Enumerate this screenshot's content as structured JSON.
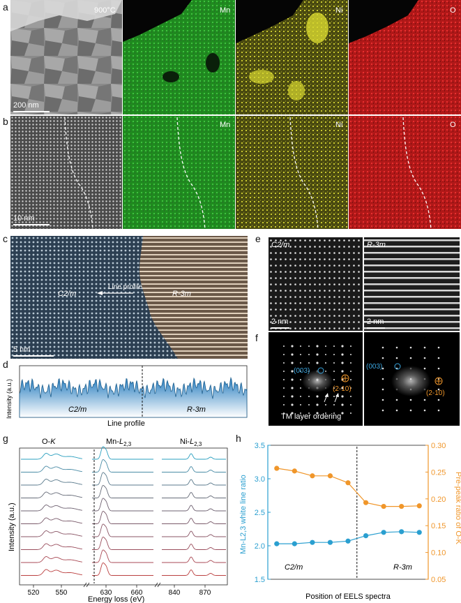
{
  "panel_labels": {
    "a": "a",
    "b": "b",
    "c": "c",
    "d": "d",
    "e": "e",
    "f": "f",
    "g": "g",
    "h": "h"
  },
  "panel_a": {
    "temperature": "900°C",
    "maps": [
      "Mn",
      "Ni",
      "O"
    ],
    "scalebar": "200 nm",
    "colors": {
      "Mn": "#33cc33",
      "Ni": "#e6e633",
      "O": "#e62a2a"
    }
  },
  "panel_b": {
    "maps": [
      "Mn",
      "Ni",
      "O"
    ],
    "scalebar": "10 nm"
  },
  "panel_c": {
    "left_phase": "C2/m",
    "right_phase": "R-3m",
    "arrow_label": "Line profile",
    "scalebar": "5 nm"
  },
  "panel_d": {
    "ylabel": "Intensity (a.u.)",
    "xlabel": "Line profile",
    "left_phase": "C2/m",
    "right_phase": "R-3m"
  },
  "panel_e": {
    "left_title": "C2/m",
    "right_title": "R-3m",
    "left_scalebar": "2 nm",
    "right_scalebar": "2 nm"
  },
  "panel_f": {
    "left_spot_blue": "(003)",
    "left_spot_orange": "(2-10)",
    "right_spot_blue": "(003)",
    "right_spot_orange": "(2-10)",
    "caption": "TM layer ordering"
  },
  "panel_g": {
    "ylabel": "Intensity (a.u.)",
    "xlabel": "Energy loss (eV)",
    "edges": [
      "O-K",
      "Mn-L2,3",
      "Ni-L2,3"
    ],
    "ticks": [
      {
        "label": "520",
        "v": 520
      },
      {
        "label": "550",
        "v": 550
      },
      {
        "label": "630",
        "v": 630
      },
      {
        "label": "660",
        "v": 660
      },
      {
        "label": "840",
        "v": 840
      },
      {
        "label": "870",
        "v": 870
      }
    ],
    "spectra_count": 10,
    "spectrum_colors": [
      "#2a9fbf",
      "#4a8ca6",
      "#5a7a8c",
      "#666b78",
      "#6e6070",
      "#7a5a6a",
      "#8a5565",
      "#9a4e5d",
      "#aa4a55",
      "#bb4040"
    ]
  },
  "chart_data": {
    "type": "line",
    "title": "",
    "xlabel": "Position of EELS spectra",
    "ylabel": "Mn-L2,3 white line ratio",
    "y2label": "Pre-peak ratio of O-K",
    "ylim": [
      1.5,
      3.5
    ],
    "y2lim": [
      0.05,
      0.3
    ],
    "yticks": [
      "1.5",
      "2.0",
      "2.5",
      "3.0",
      "3.5"
    ],
    "y2ticks": [
      "0.05",
      "0.10",
      "0.15",
      "0.20",
      "0.25",
      "0.30"
    ],
    "x": [
      1,
      2,
      3,
      4,
      5,
      6,
      7,
      8,
      9
    ],
    "series": [
      {
        "name": "Mn-L2,3 white line ratio",
        "axis": "left",
        "color": "#2a9fd0",
        "values": [
          2.03,
          2.03,
          2.05,
          2.05,
          2.07,
          2.15,
          2.2,
          2.21,
          2.2
        ]
      },
      {
        "name": "Pre-peak ratio of O-K",
        "axis": "right",
        "color": "#f0962a",
        "values": [
          0.257,
          0.252,
          0.243,
          0.243,
          0.23,
          0.193,
          0.186,
          0.186,
          0.187
        ]
      }
    ],
    "divider_x": 5.5,
    "annotations": {
      "left": "C2/m",
      "right": "R-3m"
    }
  }
}
